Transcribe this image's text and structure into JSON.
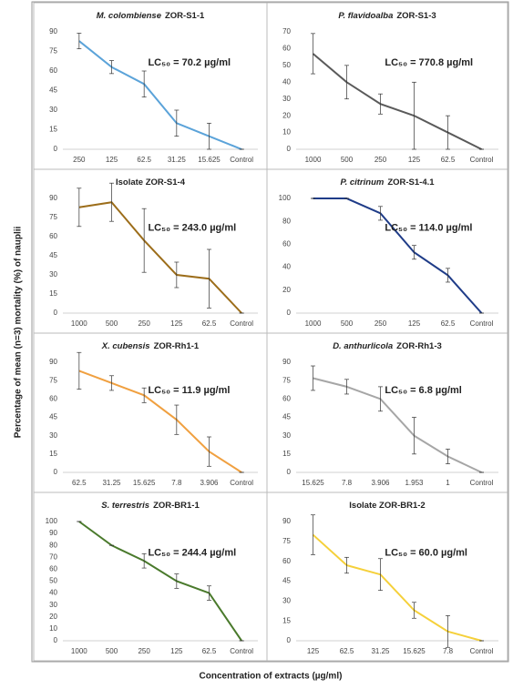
{
  "y_label": "Percentage of mean (n=3) mortality (%) of nauplii",
  "x_label": "Concentration of extracts (µg/ml)",
  "chart_data": [
    {
      "type": "line",
      "title_italic": "M. colombiense",
      "title": "ZOR-S1-1",
      "annotation": "LC₅₀ = 70.2 µg/ml",
      "categories": [
        "250",
        "125",
        "62.5",
        "31.25",
        "15.625",
        "Control"
      ],
      "values": [
        83,
        63,
        50,
        20,
        10,
        0
      ],
      "errors": [
        6,
        5,
        10,
        10,
        10,
        0
      ],
      "color": "#5ba3d9",
      "ylim": [
        0,
        90
      ],
      "yticks": [
        0,
        15,
        30,
        45,
        60,
        75,
        90
      ]
    },
    {
      "type": "line",
      "title_italic": "P. flavidoalba",
      "title": "ZOR-S1-3",
      "annotation": "LC₅₀ = 770.8 µg/ml",
      "categories": [
        "1000",
        "500",
        "250",
        "125",
        "62.5",
        "Control"
      ],
      "values": [
        57,
        40,
        27,
        20,
        10,
        0
      ],
      "errors": [
        12,
        10,
        6,
        20,
        10,
        0
      ],
      "color": "#5a5a5a",
      "ylim": [
        0,
        70
      ],
      "yticks": [
        0,
        10,
        20,
        30,
        40,
        50,
        60,
        70
      ]
    },
    {
      "type": "line",
      "title": "Isolate ZOR-S1-4",
      "annotation": "LC₅₀ = 243.0 µg/ml",
      "categories": [
        "1000",
        "500",
        "250",
        "125",
        "62.5",
        "Control"
      ],
      "values": [
        83,
        87,
        57,
        30,
        27,
        0
      ],
      "errors": [
        15,
        15,
        25,
        10,
        23,
        0
      ],
      "color": "#9c6d1a",
      "ylim": [
        0,
        90
      ],
      "yticks": [
        0,
        15,
        30,
        45,
        60,
        75,
        90
      ]
    },
    {
      "type": "line",
      "title_italic": "P. citrinum",
      "title": "ZOR-S1-4.1",
      "annotation": "LC₅₀ = 114.0 µg/ml",
      "categories": [
        "1000",
        "500",
        "250",
        "125",
        "62.5",
        "Control"
      ],
      "values": [
        100,
        100,
        87,
        53,
        33,
        0
      ],
      "errors": [
        0,
        0,
        6,
        6,
        6,
        0
      ],
      "color": "#1f3c88",
      "ylim": [
        0,
        100
      ],
      "yticks": [
        0,
        20,
        40,
        60,
        80,
        100
      ]
    },
    {
      "type": "line",
      "title_italic": "X. cubensis",
      "title": "ZOR-Rh1-1",
      "annotation": "LC₅₀ = 11.9 µg/ml",
      "categories": [
        "62.5",
        "31.25",
        "15.625",
        "7.8",
        "3.906",
        "Control"
      ],
      "values": [
        83,
        73,
        63,
        43,
        17,
        0
      ],
      "errors": [
        15,
        6,
        6,
        12,
        12,
        0
      ],
      "color": "#f0a040",
      "ylim": [
        0,
        90
      ],
      "yticks": [
        0,
        15,
        30,
        45,
        60,
        75,
        90
      ]
    },
    {
      "type": "line",
      "title_italic": "D. anthurlicola",
      "title": "ZOR-Rh1-3",
      "annotation": "LC₅₀ = 6.8 µg/ml",
      "categories": [
        "15.625",
        "7.8",
        "3.906",
        "1.953",
        "1",
        "Control"
      ],
      "values": [
        77,
        70,
        60,
        30,
        13,
        0
      ],
      "errors": [
        10,
        6,
        10,
        15,
        6,
        0
      ],
      "color": "#a6a6a6",
      "ylim": [
        0,
        90
      ],
      "yticks": [
        0,
        15,
        30,
        45,
        60,
        75,
        90
      ]
    },
    {
      "type": "line",
      "title_italic": "S. terrestris",
      "title": "ZOR-BR1-1",
      "annotation": "LC₅₀ = 244.4 µg/ml",
      "categories": [
        "1000",
        "500",
        "250",
        "125",
        "62.5",
        "Control"
      ],
      "values": [
        100,
        80,
        67,
        50,
        40,
        0
      ],
      "errors": [
        0,
        0,
        6,
        6,
        6,
        0
      ],
      "color": "#4a7a2c",
      "ylim": [
        0,
        100
      ],
      "yticks": [
        0,
        10,
        20,
        30,
        40,
        50,
        60,
        70,
        80,
        90,
        100
      ]
    },
    {
      "type": "line",
      "title": "Isolate ZOR-BR1-2",
      "annotation": "LC₅₀ = 60.0 µg/ml",
      "categories": [
        "125",
        "62.5",
        "31.25",
        "15.625",
        "7.8",
        "Control"
      ],
      "values": [
        80,
        57,
        50,
        23,
        7,
        0
      ],
      "errors": [
        15,
        6,
        12,
        6,
        12,
        0
      ],
      "color": "#f5d03a",
      "ylim": [
        0,
        90
      ],
      "yticks": [
        0,
        15,
        30,
        45,
        60,
        75,
        90
      ]
    }
  ]
}
